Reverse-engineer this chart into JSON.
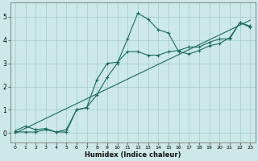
{
  "xlabel": "Humidex (Indice chaleur)",
  "bg_color": "#cce8e8",
  "grid_color": "#aacece",
  "line_color": "#1a6b5a",
  "xlim": [
    -0.5,
    23.5
  ],
  "ylim": [
    -0.4,
    5.6
  ],
  "xticks": [
    0,
    1,
    2,
    3,
    4,
    5,
    6,
    7,
    8,
    9,
    10,
    11,
    12,
    13,
    14,
    15,
    16,
    17,
    18,
    19,
    20,
    21,
    22,
    23
  ],
  "yticks": [
    0,
    1,
    2,
    3,
    4,
    5
  ],
  "line1_x": [
    0,
    1,
    2,
    3,
    4,
    5,
    6,
    7,
    8,
    9,
    10,
    11,
    12,
    13,
    14,
    15,
    16,
    17,
    18,
    19,
    20,
    21,
    22,
    23
  ],
  "line1_y": [
    0.1,
    0.3,
    0.15,
    0.2,
    0.05,
    0.15,
    1.0,
    1.1,
    1.65,
    2.4,
    3.0,
    4.05,
    5.15,
    4.9,
    4.45,
    4.3,
    3.5,
    3.4,
    3.55,
    3.75,
    3.85,
    4.1,
    4.75,
    4.6
  ],
  "line2_x": [
    0,
    1,
    2,
    3,
    4,
    5,
    6,
    7,
    8,
    9,
    10,
    11,
    12,
    13,
    14,
    15,
    16,
    17,
    18,
    19,
    20,
    21,
    22,
    23
  ],
  "line2_y": [
    0.05,
    0.05,
    0.05,
    0.15,
    0.05,
    0.05,
    1.0,
    1.1,
    2.3,
    3.0,
    3.05,
    3.5,
    3.5,
    3.35,
    3.35,
    3.5,
    3.55,
    3.7,
    3.7,
    3.9,
    4.05,
    4.05,
    4.75,
    4.55
  ],
  "line3_x": [
    0,
    23
  ],
  "line3_y": [
    0.0,
    4.85
  ]
}
